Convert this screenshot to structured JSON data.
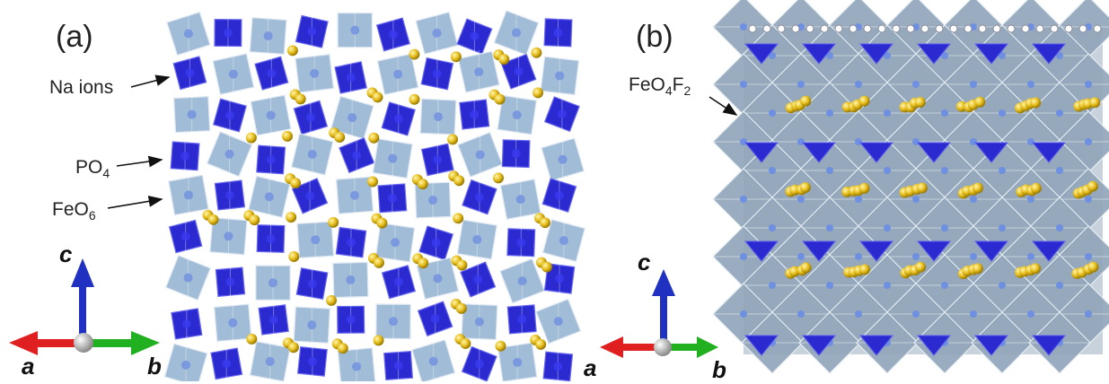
{
  "panels": [
    {
      "label": "(a)",
      "callouts": [
        {
          "base": "Na ions",
          "sub": "",
          "base2": "",
          "sub2": ""
        },
        {
          "base": "PO",
          "sub": "4",
          "base2": "",
          "sub2": ""
        },
        {
          "base": "FeO",
          "sub": "6",
          "base2": "",
          "sub2": ""
        }
      ],
      "axes": {
        "up": "c",
        "left": "a",
        "right": "b"
      }
    },
    {
      "label": "(b)",
      "callouts": [
        {
          "base": "FeO",
          "sub": "4",
          "base2": "F",
          "sub2": "2"
        }
      ],
      "axes": {
        "up": "c",
        "left": "a",
        "right": "b"
      }
    }
  ],
  "colors": {
    "po4": "#2a2ad0",
    "feo6": "#8fb0cf",
    "na": "#e8c020",
    "axis_c": "#2030c0",
    "axis_a": "#e02020",
    "axis_b": "#20b020"
  }
}
